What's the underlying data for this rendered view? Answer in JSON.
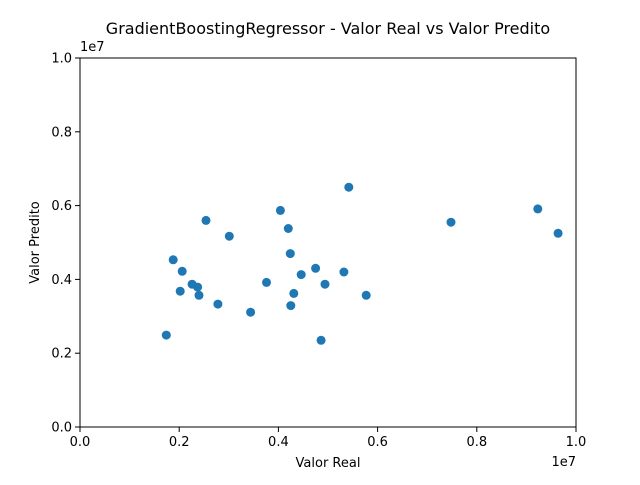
{
  "chart_data": {
    "type": "scatter",
    "title": "GradientBoostingRegressor - Valor Real vs Valor Predito",
    "xlabel": "Valor Real",
    "ylabel": "Valor Predito",
    "xlim": [
      0,
      10000000
    ],
    "ylim": [
      0,
      10000000
    ],
    "x_ticks": [
      0,
      2000000,
      4000000,
      6000000,
      8000000,
      10000000
    ],
    "y_ticks": [
      0,
      2000000,
      4000000,
      6000000,
      8000000,
      10000000
    ],
    "x_tick_labels": [
      "0.0",
      "0.2",
      "0.4",
      "0.6",
      "0.8",
      "1.0"
    ],
    "y_tick_labels": [
      "0.0",
      "0.2",
      "0.4",
      "0.6",
      "0.8",
      "1.0"
    ],
    "x_offset_label": "1e7",
    "y_offset_label": "1e7",
    "grid": false,
    "marker_color": "#1f77b4",
    "points": [
      {
        "x": 1740000,
        "y": 2490000
      },
      {
        "x": 1880000,
        "y": 4530000
      },
      {
        "x": 2020000,
        "y": 3680000
      },
      {
        "x": 2060000,
        "y": 4220000
      },
      {
        "x": 2260000,
        "y": 3870000
      },
      {
        "x": 2370000,
        "y": 3790000
      },
      {
        "x": 2400000,
        "y": 3570000
      },
      {
        "x": 2540000,
        "y": 5600000
      },
      {
        "x": 2780000,
        "y": 3330000
      },
      {
        "x": 3010000,
        "y": 5170000
      },
      {
        "x": 3440000,
        "y": 3110000
      },
      {
        "x": 3760000,
        "y": 3920000
      },
      {
        "x": 4040000,
        "y": 5870000
      },
      {
        "x": 4200000,
        "y": 5380000
      },
      {
        "x": 4240000,
        "y": 4700000
      },
      {
        "x": 4250000,
        "y": 3290000
      },
      {
        "x": 4310000,
        "y": 3620000
      },
      {
        "x": 4460000,
        "y": 4130000
      },
      {
        "x": 4750000,
        "y": 4300000
      },
      {
        "x": 4860000,
        "y": 2350000
      },
      {
        "x": 4940000,
        "y": 3870000
      },
      {
        "x": 5320000,
        "y": 4200000
      },
      {
        "x": 5420000,
        "y": 6500000
      },
      {
        "x": 5770000,
        "y": 3570000
      },
      {
        "x": 7480000,
        "y": 5550000
      },
      {
        "x": 9230000,
        "y": 5910000
      },
      {
        "x": 9640000,
        "y": 5250000
      }
    ]
  }
}
